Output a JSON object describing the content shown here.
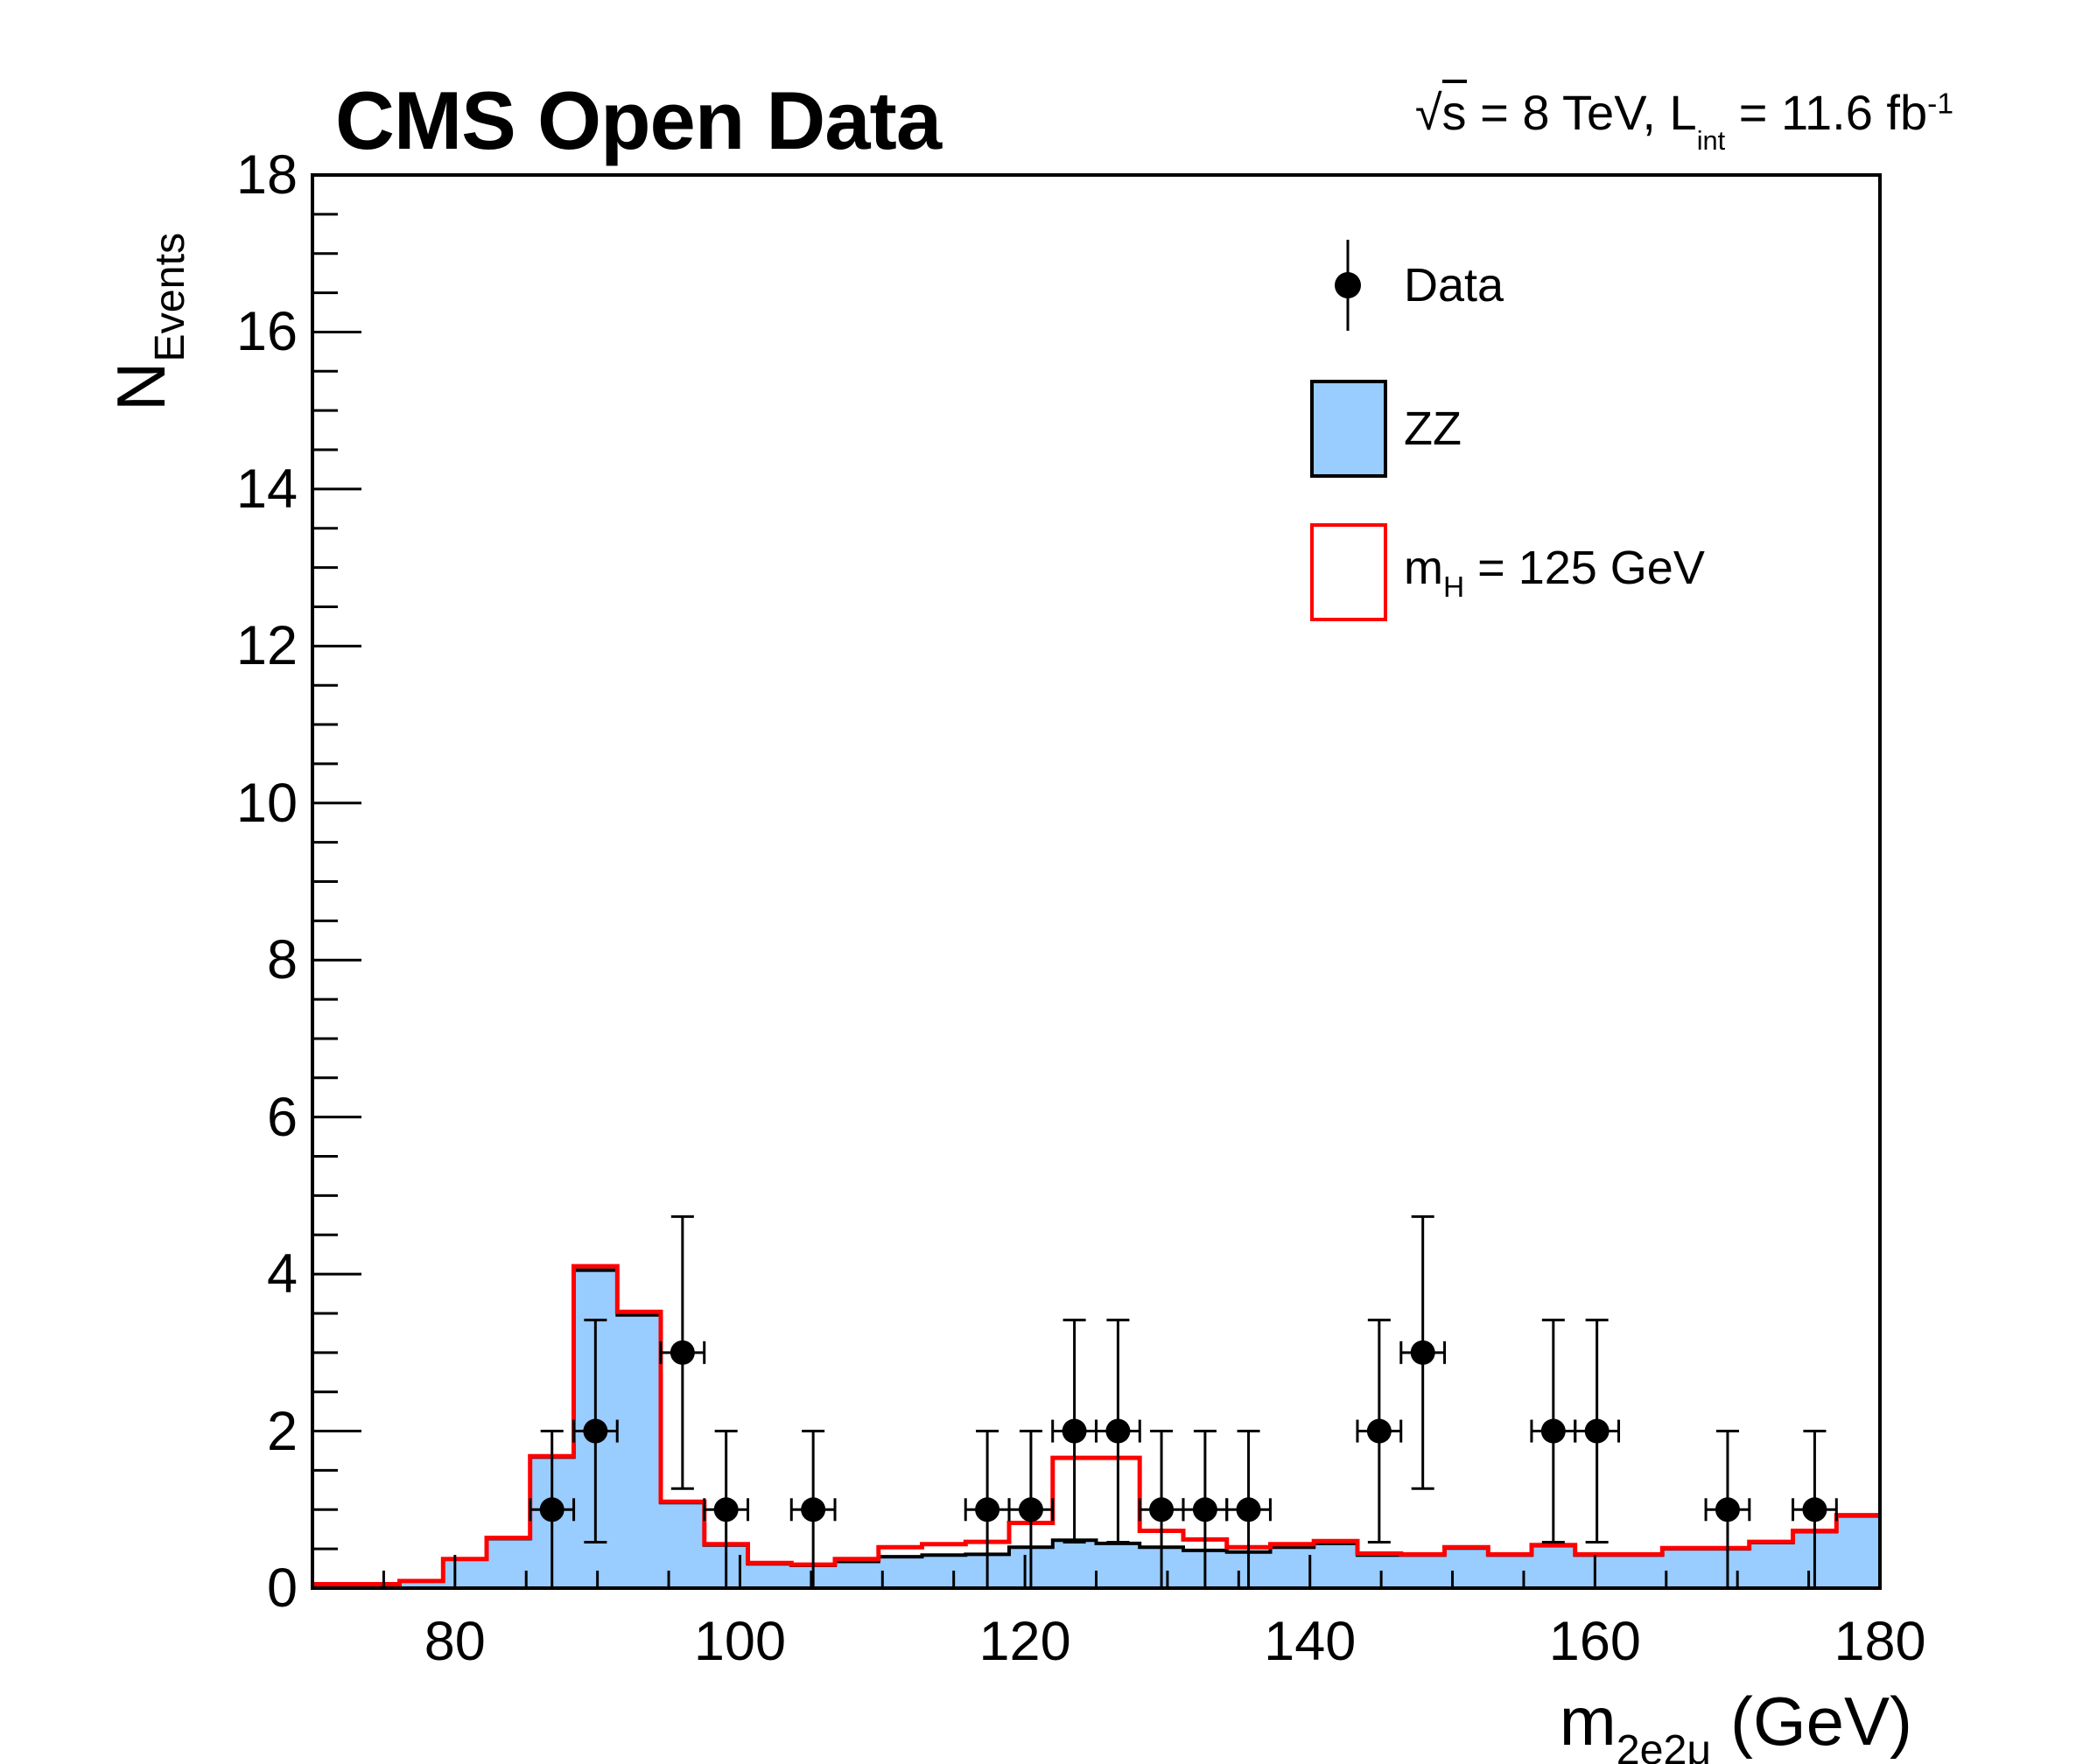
{
  "header": {
    "title": "CMS Open Data",
    "lumi": {
      "sqrt": "√",
      "s": "s",
      "mid": " = 8 TeV, L",
      "lsub": "int",
      "tail": " = 11.6 fb",
      "sup": "-1"
    }
  },
  "axes": {
    "y_title": {
      "main": "N",
      "sub": "Events"
    },
    "x_title": {
      "main": "m",
      "sub": "2e2μ",
      "tail": " (GeV)"
    }
  },
  "legend": {
    "data_label": "Data",
    "zz_label": "ZZ",
    "higgs": {
      "main": "m",
      "sub": "H",
      "tail": " = 125 GeV"
    }
  },
  "colors": {
    "zz_fill": "#99CCFF",
    "histogram_border": "#000000",
    "signal_line": "#FF0000",
    "data_marker": "#000000"
  },
  "chart_data": {
    "type": "bar",
    "subtype": "stepped-histogram-with-data-points",
    "title": "CMS Open Data",
    "xlabel": "m_2e2mu (GeV)",
    "ylabel": "N_Events",
    "x_range": [
      70,
      180
    ],
    "ylim": [
      0,
      18
    ],
    "n_bins": 36,
    "bin_width": 3.0556,
    "grid": "off",
    "legend_position": "top-right-inside",
    "x_major_ticks": [
      80,
      100,
      120,
      140,
      160,
      180
    ],
    "x_minor_tick_step": 5,
    "y_major_ticks": [
      0,
      2,
      4,
      6,
      8,
      10,
      12,
      14,
      16,
      18
    ],
    "y_minor_tick_step": 0.5,
    "series": [
      {
        "name": "ZZ",
        "style": "filled_histogram",
        "color": "#99CCFF",
        "values": [
          0.05,
          0.05,
          0.09,
          0.37,
          0.63,
          1.67,
          4.05,
          3.48,
          1.09,
          0.55,
          0.31,
          0.29,
          0.34,
          0.4,
          0.42,
          0.43,
          0.52,
          0.61,
          0.57,
          0.52,
          0.48,
          0.46,
          0.52,
          0.57,
          0.42,
          0.42,
          0.51,
          0.42,
          0.54,
          0.42,
          0.42,
          0.5,
          0.5,
          0.58,
          0.72,
          0.92
        ]
      },
      {
        "name": "mH = 125 GeV",
        "style": "outline_histogram",
        "color": "#FF0000",
        "values": [
          0.05,
          0.05,
          0.09,
          0.37,
          0.64,
          1.68,
          4.1,
          3.52,
          1.1,
          0.56,
          0.32,
          0.3,
          0.37,
          0.52,
          0.56,
          0.59,
          0.83,
          1.66,
          1.66,
          0.73,
          0.62,
          0.52,
          0.56,
          0.6,
          0.44,
          0.43,
          0.52,
          0.43,
          0.55,
          0.43,
          0.43,
          0.51,
          0.51,
          0.59,
          0.73,
          0.93
        ]
      },
      {
        "name": "Data",
        "style": "points_with_errors",
        "error_model": "sqrt(n), x half-bin",
        "points": [
          [
            86.81,
            1
          ],
          [
            89.86,
            2
          ],
          [
            95.97,
            3
          ],
          [
            99.03,
            1
          ],
          [
            105.14,
            1
          ],
          [
            117.36,
            1
          ],
          [
            120.42,
            1
          ],
          [
            123.47,
            2
          ],
          [
            126.53,
            2
          ],
          [
            129.58,
            1
          ],
          [
            132.64,
            1
          ],
          [
            135.69,
            1
          ],
          [
            144.86,
            2
          ],
          [
            147.92,
            3
          ],
          [
            157.08,
            2
          ],
          [
            160.14,
            2
          ],
          [
            169.31,
            1
          ],
          [
            175.42,
            1
          ]
        ]
      }
    ]
  }
}
